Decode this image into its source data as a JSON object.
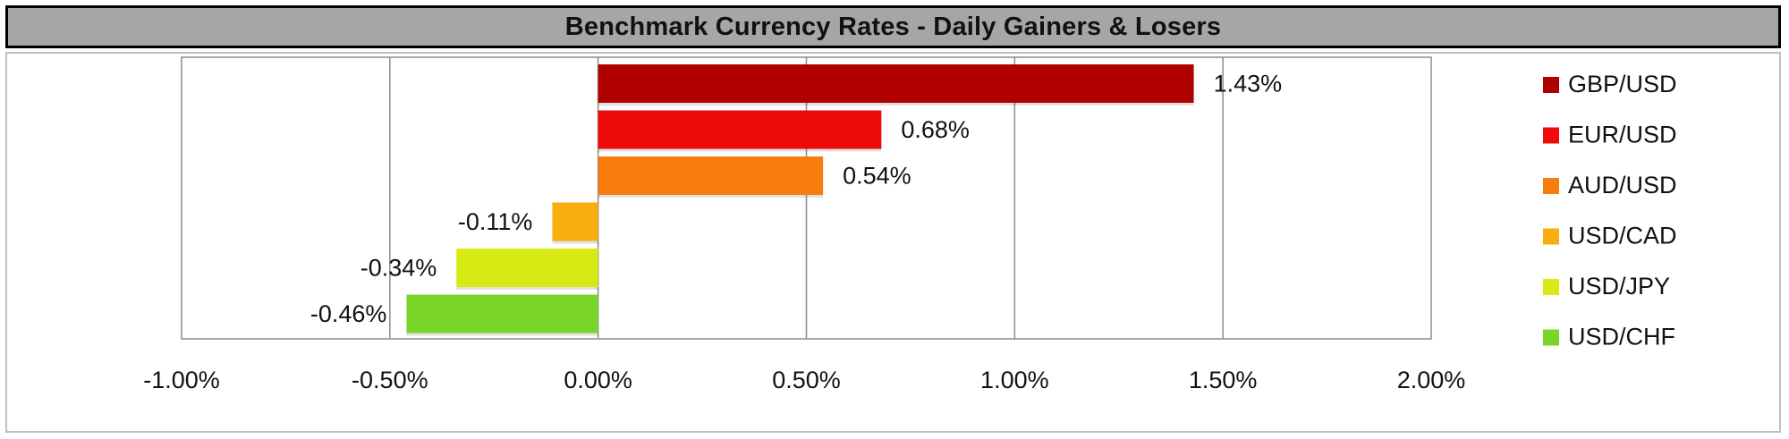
{
  "title": "Benchmark Currency Rates - Daily Gainers & Losers",
  "chart_data": {
    "type": "bar",
    "orientation": "horizontal",
    "categories": [
      "GBP/USD",
      "EUR/USD",
      "AUD/USD",
      "USD/CAD",
      "USD/JPY",
      "USD/CHF"
    ],
    "values": [
      1.43,
      0.68,
      0.54,
      -0.11,
      -0.34,
      -0.46
    ],
    "value_labels": [
      "1.43%",
      "0.68%",
      "0.54%",
      "-0.11%",
      "-0.34%",
      "-0.46%"
    ],
    "colors": [
      "#b00000",
      "#ef0a0a",
      "#f87d0c",
      "#f9ad0e",
      "#d7ea13",
      "#7bd428"
    ],
    "xlim": [
      -1.0,
      2.0
    ],
    "xticks": [
      -1.0,
      -0.5,
      0.0,
      0.5,
      1.0,
      1.5,
      2.0
    ],
    "xtick_labels": [
      "-1.00%",
      "-0.50%",
      "0.00%",
      "0.50%",
      "1.00%",
      "1.50%",
      "2.00%"
    ],
    "grid": "vertical",
    "legend_position": "right",
    "xlabel": "",
    "ylabel": ""
  }
}
